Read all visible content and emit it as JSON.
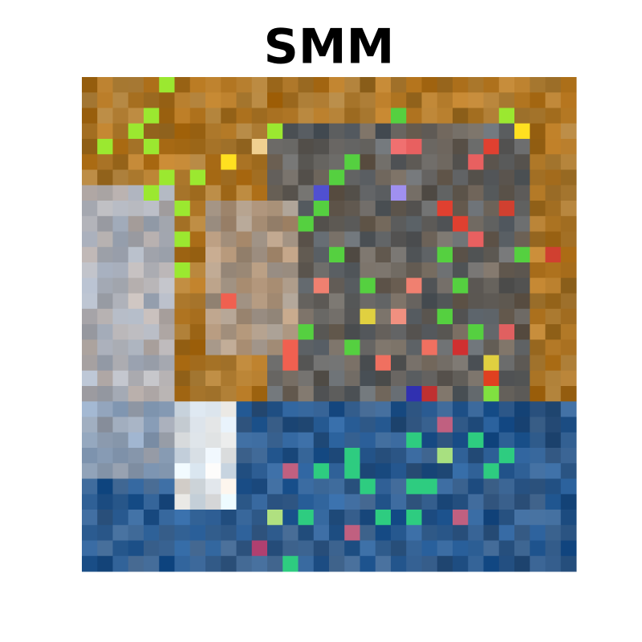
{
  "title": "SMM"
}
